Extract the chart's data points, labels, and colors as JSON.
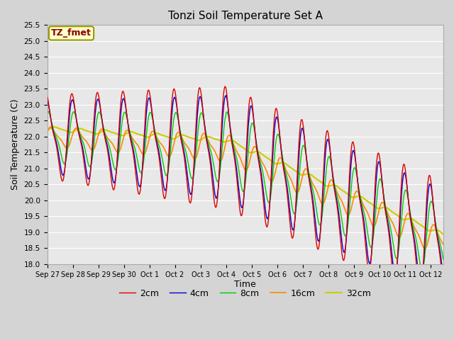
{
  "title": "Tonzi Soil Temperature Set A",
  "xlabel": "Time",
  "ylabel": "Soil Temperature (C)",
  "annotation": "TZ_fmet",
  "ylim": [
    18.0,
    25.5
  ],
  "yticks": [
    18.0,
    18.5,
    19.0,
    19.5,
    20.0,
    20.5,
    21.0,
    21.5,
    22.0,
    22.5,
    23.0,
    23.5,
    24.0,
    24.5,
    25.0,
    25.5
  ],
  "xtick_labels": [
    "Sep 27",
    "Sep 28",
    "Sep 29",
    "Sep 30",
    "Oct 1",
    "Oct 2",
    "Oct 3",
    "Oct 4",
    "Oct 5",
    "Oct 6",
    "Oct 7",
    "Oct 8",
    "Oct 9",
    "Oct 10",
    "Oct 11",
    "Oct 12"
  ],
  "legend_labels": [
    "2cm",
    "4cm",
    "8cm",
    "16cm",
    "32cm"
  ],
  "line_colors": [
    "#dd0000",
    "#0000cc",
    "#00cc00",
    "#ff8800",
    "#cccc00"
  ],
  "figsize": [
    6.4,
    4.8
  ],
  "dpi": 100
}
